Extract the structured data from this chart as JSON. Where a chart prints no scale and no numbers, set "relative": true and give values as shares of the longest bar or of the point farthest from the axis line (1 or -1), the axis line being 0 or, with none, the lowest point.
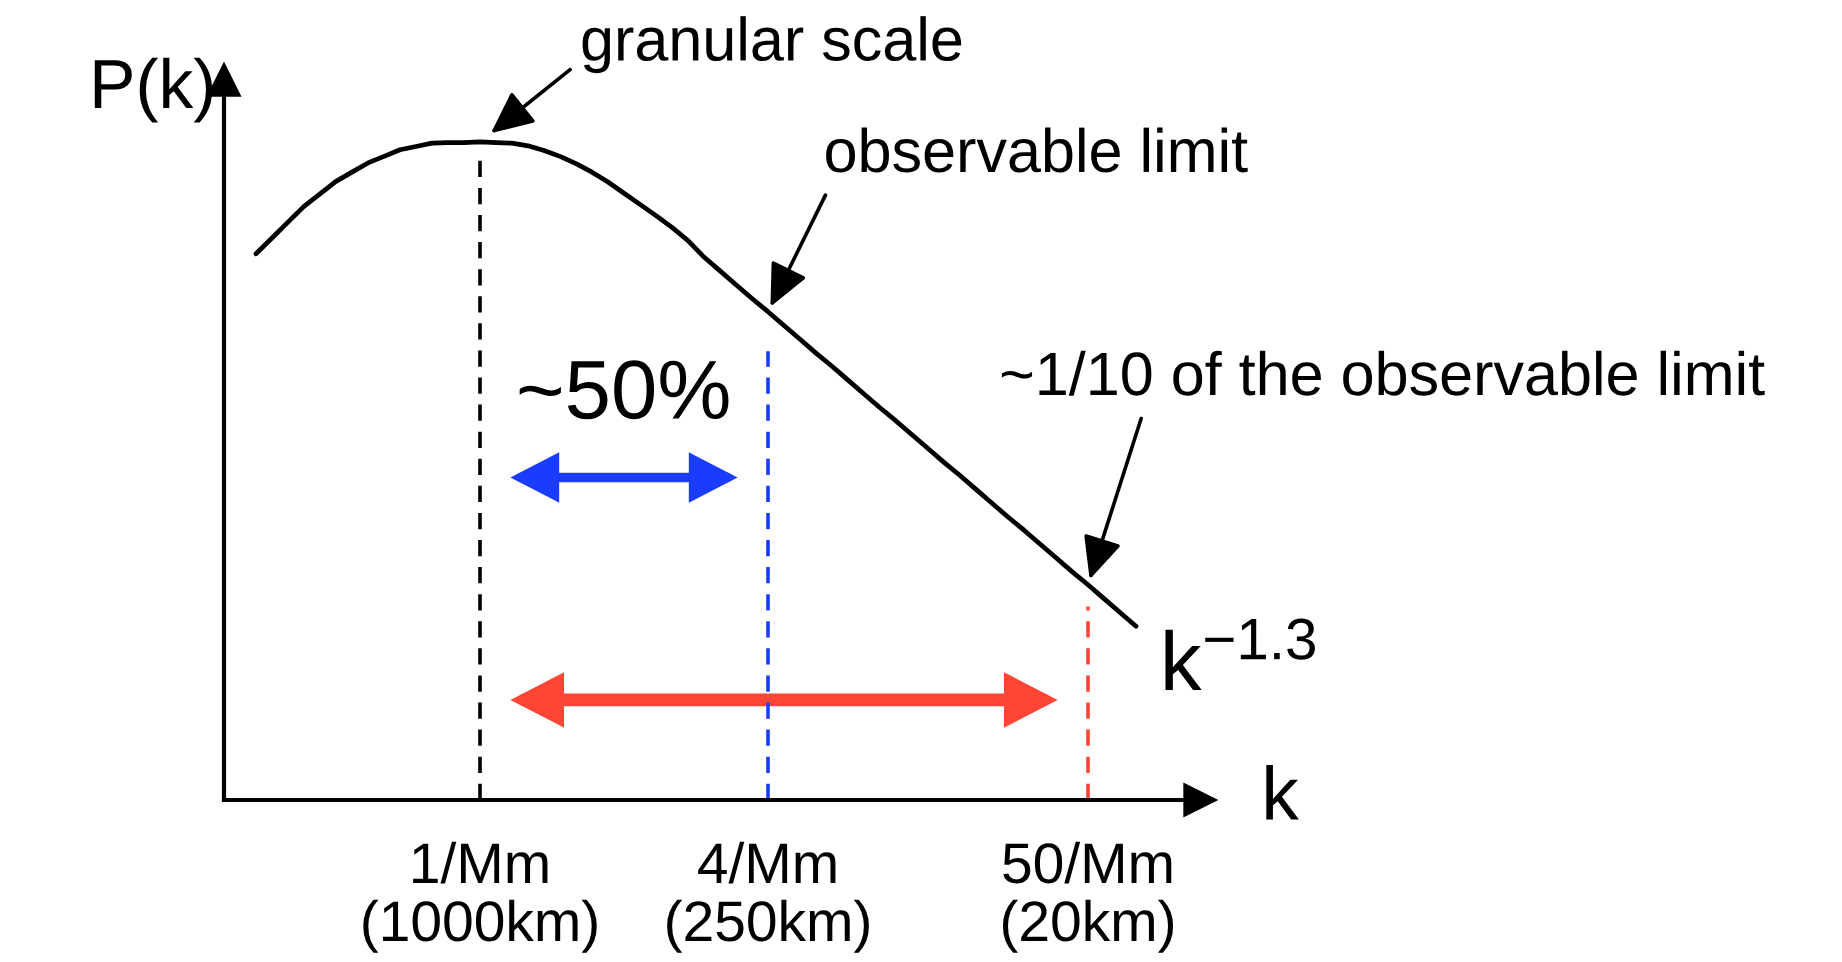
{
  "chart_data": {
    "type": "line",
    "relative": true,
    "tick_labels": "x",
    "ylabel": "P(k)",
    "xlabel": "k",
    "categories": [
      null,
      null,
      null,
      null,
      null,
      null,
      null,
      null,
      null,
      null,
      null,
      null,
      null,
      null,
      "1/Mm\n(1000km)",
      null,
      null,
      null,
      null,
      null,
      null,
      null,
      null,
      null,
      null,
      null,
      null,
      null,
      null,
      null,
      null,
      null,
      "4/Mm\n(250km)",
      null,
      null,
      null,
      null,
      null,
      null,
      null,
      null,
      null,
      null,
      null,
      null,
      null,
      null,
      null,
      null,
      null,
      null,
      null,
      "50/Mm\n(20km)",
      null,
      null,
      null
    ],
    "series": [
      {
        "name": "k$^{−1.3}$",
        "color": "#000000",
        "values": [
          0.83,
          0.854,
          0.878,
          0.902,
          0.921,
          0.94,
          0.954,
          0.968,
          0.978,
          0.988,
          0.993,
          0.998,
          0.999,
          0.999,
          1.0,
          0.999,
          0.998,
          0.994,
          0.987,
          0.978,
          0.967,
          0.954,
          0.939,
          0.922,
          0.905,
          0.888,
          0.87,
          0.85,
          0.825,
          0.804,
          0.783,
          0.762,
          0.742,
          0.721,
          0.7,
          0.679,
          0.659,
          0.638,
          0.617,
          0.596,
          0.576,
          0.555,
          0.534,
          0.513,
          0.493,
          0.472,
          0.451,
          0.43,
          0.41,
          0.389,
          0.368,
          0.347,
          0.327,
          0.306,
          0.285,
          0.264
        ]
      }
    ],
    "ref_lines": [
      {
        "axis": "x",
        "value": "1/Mm\n(1000km)",
        "color": "#000000",
        "line_style": "dashed"
      },
      {
        "axis": "x",
        "value": "4/Mm\n(250km)",
        "color": "#1a3cff",
        "line_style": "dashed"
      },
      {
        "axis": "x",
        "value": "50/Mm\n(20km)",
        "color": "#ff4535",
        "line_style": "dashed"
      }
    ],
    "annotations": [
      {
        "text": "granular scale",
        "x": "1/Mm\n(1000km)",
        "y": 1.0
      },
      {
        "text": "observable limit",
        "x": "4/Mm\n(250km)",
        "y": 0.742
      },
      {
        "text": "~1/10 of the observable limit",
        "x": "50/Mm\n(20km)",
        "y": 0.327
      },
      "~50%"
    ]
  }
}
